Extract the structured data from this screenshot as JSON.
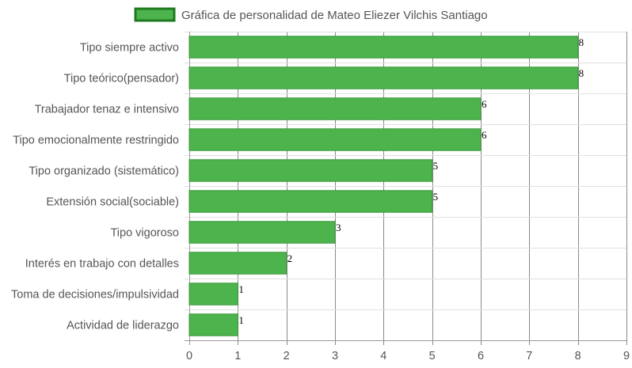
{
  "chart_data": {
    "type": "bar",
    "orientation": "horizontal",
    "categories": [
      "Tipo siempre activo",
      "Tipo teórico(pensador)",
      "Trabajador tenaz e intensivo",
      "Tipo emocionalmente restringido",
      "Tipo organizado (sistemático)",
      "Extensión social(sociable)",
      "Tipo vigoroso",
      "Interés en trabajo con detalles",
      "Toma de decisiones/impulsividad",
      "Actividad de liderazgo"
    ],
    "series": [
      {
        "name": "Gráfica de personalidad de Mateo Eliezer Vilchis Santiago",
        "values": [
          8,
          8,
          6,
          6,
          5,
          5,
          3,
          2,
          1,
          1
        ]
      }
    ],
    "xlim": [
      0,
      9
    ],
    "x_ticks": [
      "0",
      "1",
      "2",
      "3",
      "4",
      "5",
      "6",
      "7",
      "8",
      "9"
    ],
    "legend_position": "top",
    "grid": true,
    "data_labels": true,
    "colors": {
      "bar_fill": "#4db34d",
      "bar_stroke": "#3a9a3a",
      "legend_fill": "#4db34d",
      "legend_stroke": "#1f7a1f",
      "grid": "#e0e0e0",
      "grid_major": "#8a8a8a",
      "text": "#555555"
    }
  }
}
